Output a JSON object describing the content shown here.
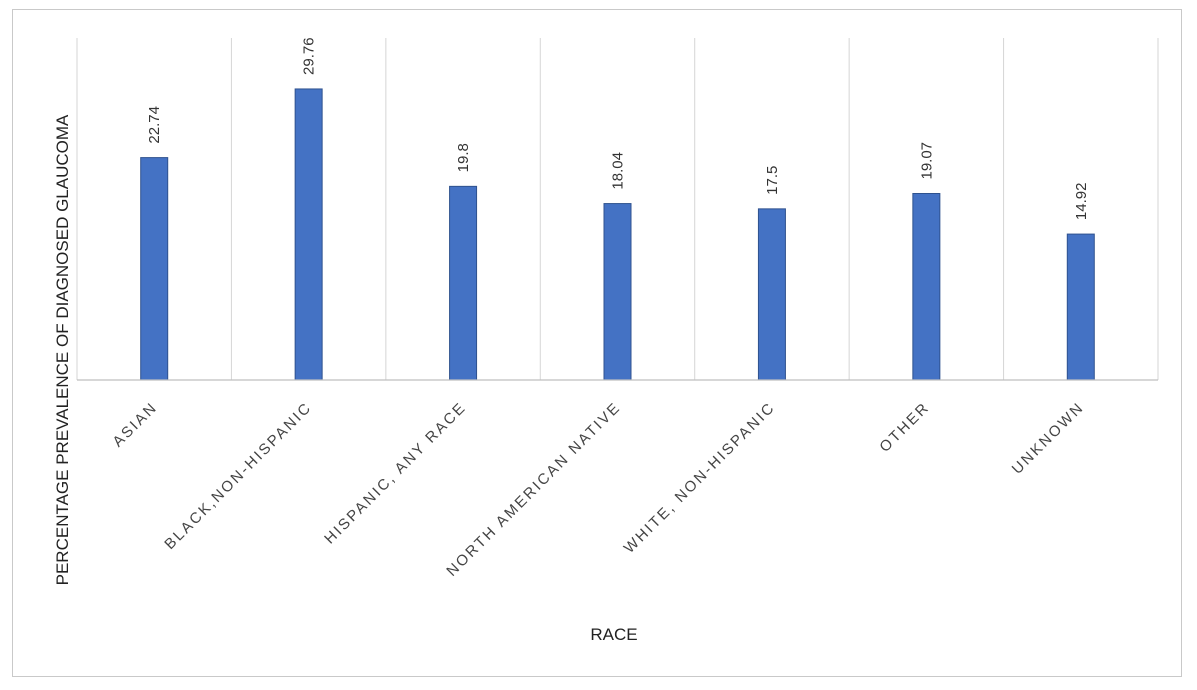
{
  "chart_data": {
    "type": "bar",
    "categories": [
      "ASIAN",
      "BLACK,NON-HISPANIC",
      "HISPANIC, ANY RACE",
      "NORTH AMERICAN NATIVE",
      "WHITE, NON-HISPANIC",
      "OTHER",
      "UNKNOWN"
    ],
    "values": [
      22.74,
      29.76,
      19.8,
      18.04,
      17.5,
      19.07,
      14.92
    ],
    "data_labels": [
      "22.74",
      "29.76",
      "19.8",
      "18.04",
      "17.5",
      "19.07",
      "14.92"
    ],
    "xlabel": "RACE",
    "ylabel": "PERCENTAGE PREVALENCE OF DIAGNOSED GLAUCOMA",
    "ylim": [
      0,
      35
    ],
    "bar_color": "#4472C4",
    "bar_edge_color": "#2F528F",
    "grid": "vertical category separators",
    "legend": "none"
  }
}
